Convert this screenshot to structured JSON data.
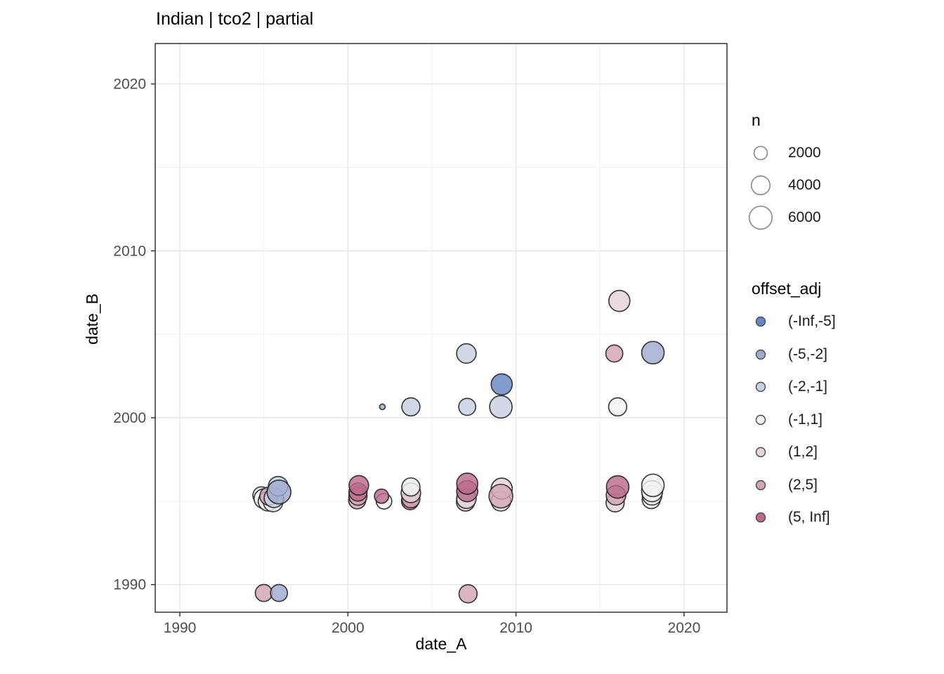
{
  "chart_data": {
    "type": "scatter",
    "title": "Indian | tco2 | partial",
    "xlabel": "date_A",
    "ylabel": "date_B",
    "xlim": [
      1988.5,
      2022.6
    ],
    "ylim": [
      1988.4,
      2022.4
    ],
    "x_ticks": [
      1990,
      2000,
      2010,
      2020
    ],
    "y_ticks": [
      1990,
      2000,
      2010,
      2020
    ],
    "x_minor_ticks": [
      1995,
      2005,
      2015
    ],
    "y_minor_ticks": [
      1995,
      2005,
      2015
    ],
    "grid": true,
    "panel_border_color": "#333333",
    "major_grid_color": "#e6e6e6",
    "minor_grid_color": "#f1f1f1",
    "point_stroke_color": "#1f1f1f",
    "size_legend": {
      "title": "n",
      "entries": [
        {
          "n": 2000,
          "label": "2000"
        },
        {
          "n": 4000,
          "label": "4000"
        },
        {
          "n": 6000,
          "label": "6000"
        }
      ]
    },
    "color_legend": {
      "title": "offset_adj",
      "entries": [
        {
          "label": "(-Inf,-5]",
          "color": "#6787c2"
        },
        {
          "label": "(-5,-2]",
          "color": "#9fa9d0"
        },
        {
          "label": "(-2,-1]",
          "color": "#c9d0e2"
        },
        {
          "label": "(-1,1]",
          "color": "#f1f1f1"
        },
        {
          "label": "(1,2]",
          "color": "#e5d3d9"
        },
        {
          "label": "(2,5]",
          "color": "#d2a3b4"
        },
        {
          "label": "(5, Inf]",
          "color": "#bb6a8c"
        }
      ]
    },
    "points": [
      {
        "x": 1994.85,
        "y": 1995.35,
        "n": 3300,
        "offset_adj": "(-1,1]"
      },
      {
        "x": 1995.0,
        "y": 1995.15,
        "n": 4400,
        "offset_adj": "(-1,1]"
      },
      {
        "x": 1995.25,
        "y": 1995.0,
        "n": 4400,
        "offset_adj": "(-1,1]"
      },
      {
        "x": 1995.55,
        "y": 1994.95,
        "n": 4400,
        "offset_adj": "(-1,1]"
      },
      {
        "x": 1995.3,
        "y": 1995.3,
        "n": 3800,
        "offset_adj": "(2,5]"
      },
      {
        "x": 1995.6,
        "y": 1995.2,
        "n": 4400,
        "offset_adj": "(-2,-1]"
      },
      {
        "x": 1995.85,
        "y": 1995.9,
        "n": 4400,
        "offset_adj": "(-2,-1]"
      },
      {
        "x": 1995.9,
        "y": 1995.55,
        "n": 6500,
        "offset_adj": "(-5,-2]"
      },
      {
        "x": 1995.0,
        "y": 1989.5,
        "n": 3300,
        "offset_adj": "(2,5]"
      },
      {
        "x": 1995.9,
        "y": 1989.5,
        "n": 3300,
        "offset_adj": "(-5,-2]"
      },
      {
        "x": 2000.55,
        "y": 1995.05,
        "n": 3300,
        "offset_adj": "(2,5]"
      },
      {
        "x": 2000.6,
        "y": 1995.3,
        "n": 3800,
        "offset_adj": "(2,5]"
      },
      {
        "x": 2000.6,
        "y": 1995.55,
        "n": 3800,
        "offset_adj": "(5, Inf]"
      },
      {
        "x": 2000.65,
        "y": 1995.95,
        "n": 4400,
        "offset_adj": "(5, Inf]"
      },
      {
        "x": 2002.15,
        "y": 1995.0,
        "n": 2800,
        "offset_adj": "(-1,1]"
      },
      {
        "x": 2002.0,
        "y": 1995.3,
        "n": 2300,
        "offset_adj": "(5, Inf]"
      },
      {
        "x": 2002.05,
        "y": 2000.65,
        "n": 360,
        "offset_adj": "(-5,-2]"
      },
      {
        "x": 2003.7,
        "y": 1995.0,
        "n": 3300,
        "offset_adj": "(5, Inf]"
      },
      {
        "x": 2003.75,
        "y": 1995.15,
        "n": 3800,
        "offset_adj": "(2,5]"
      },
      {
        "x": 2003.75,
        "y": 1995.5,
        "n": 4400,
        "offset_adj": "(1,2]"
      },
      {
        "x": 2003.75,
        "y": 1995.85,
        "n": 3800,
        "offset_adj": "(-1,1]"
      },
      {
        "x": 2003.75,
        "y": 2000.65,
        "n": 3800,
        "offset_adj": "(-2,-1]"
      },
      {
        "x": 2007.0,
        "y": 1994.95,
        "n": 3800,
        "offset_adj": "(1,2]"
      },
      {
        "x": 2007.05,
        "y": 1995.15,
        "n": 4400,
        "offset_adj": "(1,2]"
      },
      {
        "x": 2007.1,
        "y": 1995.6,
        "n": 5100,
        "offset_adj": "(5, Inf]"
      },
      {
        "x": 2007.1,
        "y": 1996.05,
        "n": 5100,
        "offset_adj": "(5, Inf]"
      },
      {
        "x": 2007.05,
        "y": 2003.85,
        "n": 4400,
        "offset_adj": "(-2,-1]"
      },
      {
        "x": 2007.1,
        "y": 2000.65,
        "n": 3300,
        "offset_adj": "(-2,-1]"
      },
      {
        "x": 2007.15,
        "y": 1989.45,
        "n": 3800,
        "offset_adj": "(2,5]"
      },
      {
        "x": 2009.1,
        "y": 1995.0,
        "n": 4400,
        "offset_adj": "(-1,1]"
      },
      {
        "x": 2009.15,
        "y": 1995.75,
        "n": 5100,
        "offset_adj": "(1,2]"
      },
      {
        "x": 2009.1,
        "y": 1995.3,
        "n": 6500,
        "offset_adj": "(2,5]"
      },
      {
        "x": 2009.1,
        "y": 2000.65,
        "n": 5800,
        "offset_adj": "(-2,-1]"
      },
      {
        "x": 2009.15,
        "y": 2002.0,
        "n": 5100,
        "offset_adj": "(-Inf,-5]"
      },
      {
        "x": 2015.9,
        "y": 1994.9,
        "n": 3800,
        "offset_adj": "(1,2]"
      },
      {
        "x": 2015.95,
        "y": 1995.35,
        "n": 4400,
        "offset_adj": "(2,5]"
      },
      {
        "x": 2016.05,
        "y": 1995.85,
        "n": 5800,
        "offset_adj": "(5, Inf]"
      },
      {
        "x": 2016.15,
        "y": 2007.0,
        "n": 5100,
        "offset_adj": "(1,2]"
      },
      {
        "x": 2015.85,
        "y": 2003.85,
        "n": 3300,
        "offset_adj": "(2,5]"
      },
      {
        "x": 2016.05,
        "y": 2000.65,
        "n": 3800,
        "offset_adj": "(-1,1]"
      },
      {
        "x": 2018.05,
        "y": 1995.1,
        "n": 3800,
        "offset_adj": "(-1,1]"
      },
      {
        "x": 2018.1,
        "y": 1995.35,
        "n": 4400,
        "offset_adj": "(-1,1]"
      },
      {
        "x": 2018.1,
        "y": 1995.6,
        "n": 5100,
        "offset_adj": "(-1,1]"
      },
      {
        "x": 2018.15,
        "y": 1995.95,
        "n": 5800,
        "offset_adj": "(-1,1]"
      },
      {
        "x": 2018.15,
        "y": 2003.9,
        "n": 5800,
        "offset_adj": "(-5,-2]"
      }
    ]
  }
}
